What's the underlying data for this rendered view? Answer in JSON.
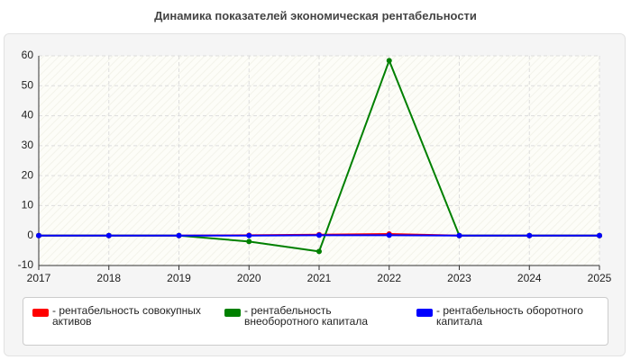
{
  "chart_data": {
    "type": "line",
    "title": "Динамика показателей экономическая рентабельности",
    "x": [
      2017,
      2018,
      2019,
      2020,
      2021,
      2022,
      2023,
      2024,
      2025
    ],
    "xlim": [
      2017,
      2025
    ],
    "xticks": [
      2017,
      2018,
      2019,
      2020,
      2021,
      2022,
      2023,
      2024,
      2025
    ],
    "ylim": [
      -10,
      60
    ],
    "yticks": [
      -10,
      0,
      10,
      20,
      30,
      40,
      50,
      60
    ],
    "grid": true,
    "series": [
      {
        "name": "- рентабельность совокупных активов",
        "color": "#ff0000",
        "values": [
          0,
          0,
          0,
          0.1,
          0.3,
          0.5,
          0,
          0,
          0
        ]
      },
      {
        "name": "- рентабельность внеоборотного капитала",
        "color": "#008000",
        "values": [
          0,
          0,
          0,
          -2,
          -5.3,
          58.4,
          0,
          0,
          0
        ]
      },
      {
        "name": "- рентабельность оборотного капитала",
        "color": "#0000ff",
        "values": [
          0,
          0,
          0,
          0,
          0.1,
          0.1,
          0,
          0,
          0
        ]
      }
    ]
  }
}
